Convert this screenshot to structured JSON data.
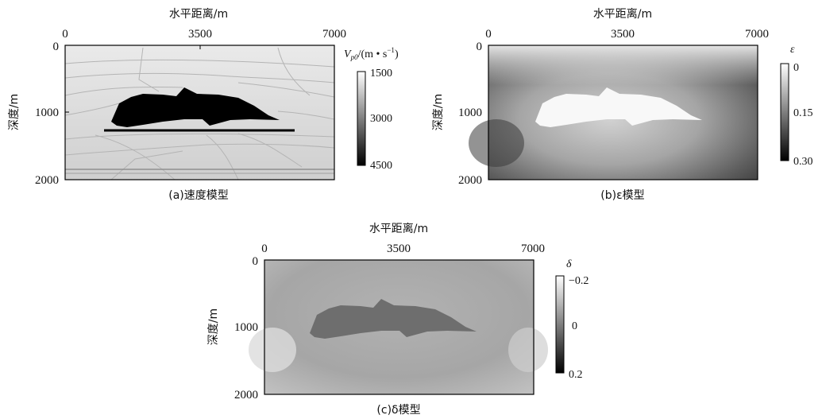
{
  "panels": {
    "a": {
      "caption": "(a)速度模型",
      "xlabel": "水平距离/m",
      "ylabel": "深度/m",
      "xticks": [
        "0",
        "3500",
        "7000"
      ],
      "yticks": [
        "0",
        "1000",
        "2000"
      ],
      "colorbar_label": "V",
      "colorbar_label_sub": "p0",
      "colorbar_label_rest": "/(m • s",
      "colorbar_label_sup": "−1",
      "colorbar_label_end": ")",
      "colorbar_ticks": [
        "1500",
        "3000",
        "4500"
      ]
    },
    "b": {
      "caption": "(b)ε模型",
      "xlabel": "水平距离/m",
      "ylabel": "深度/m",
      "xticks": [
        "0",
        "3500",
        "7000"
      ],
      "yticks": [
        "0",
        "1000",
        "2000"
      ],
      "colorbar_label": "ε",
      "colorbar_ticks": [
        "0",
        "0.15",
        "0.30"
      ]
    },
    "c": {
      "caption": "(c)δ模型",
      "xlabel": "水平距离/m",
      "ylabel": "深度/m",
      "xticks": [
        "0",
        "3500",
        "7000"
      ],
      "yticks": [
        "0",
        "1000",
        "2000"
      ],
      "colorbar_label": "δ",
      "colorbar_ticks": [
        "−0.2",
        "0",
        "0.2"
      ]
    }
  }
}
